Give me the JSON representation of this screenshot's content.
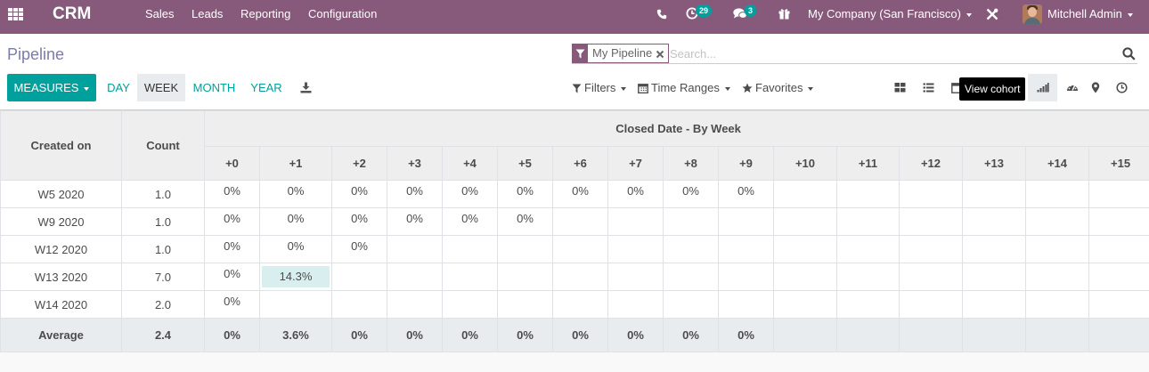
{
  "navbar": {
    "brand": "CRM",
    "menu": [
      "Sales",
      "Leads",
      "Reporting",
      "Configuration"
    ],
    "activity_count": "29",
    "message_count": "3",
    "company": "My Company (San Francisco)",
    "user": "Mitchell Admin",
    "color": "#875a7b"
  },
  "control_panel": {
    "breadcrumb": "Pipeline",
    "facet_label": "My Pipeline",
    "search_placeholder": "Search...",
    "measures_label": "MEASURES",
    "periods": [
      "DAY",
      "WEEK",
      "MONTH",
      "YEAR"
    ],
    "active_period": "WEEK",
    "filters_label": "Filters",
    "time_ranges_label": "Time Ranges",
    "favorites_label": "Favorites",
    "views": [
      "kanban-icon",
      "list-icon",
      "calendar-icon",
      "cohort-icon",
      "dashboard-icon",
      "map-icon",
      "activity-icon"
    ],
    "active_view": "cohort-icon",
    "tooltip": "View cohort",
    "accent_color": "#00a09d"
  },
  "cohort": {
    "header_created": "Created on",
    "header_count": "Count",
    "header_group": "Closed Date - By Week",
    "intervals": [
      "+0",
      "+1",
      "+2",
      "+3",
      "+4",
      "+5",
      "+6",
      "+7",
      "+8",
      "+9",
      "+10",
      "+11",
      "+12",
      "+13",
      "+14",
      "+15"
    ],
    "rows": [
      {
        "label": "W5 2020",
        "count": "1.0",
        "values": [
          "0%",
          "0%",
          "0%",
          "0%",
          "0%",
          "0%",
          "0%",
          "0%",
          "0%",
          "0%"
        ]
      },
      {
        "label": "W9 2020",
        "count": "1.0",
        "values": [
          "0%",
          "0%",
          "0%",
          "0%",
          "0%",
          "0%"
        ]
      },
      {
        "label": "W12 2020",
        "count": "1.0",
        "values": [
          "0%",
          "0%",
          "0%"
        ]
      },
      {
        "label": "W13 2020",
        "count": "7.0",
        "values": [
          "0%",
          "14.3%"
        ]
      },
      {
        "label": "W14 2020",
        "count": "2.0",
        "values": [
          "0%"
        ]
      }
    ],
    "highlight": {
      "row": 3,
      "col": 1
    },
    "footer": {
      "label": "Average",
      "count": "2.4",
      "values": [
        "0%",
        "3.6%",
        "0%",
        "0%",
        "0%",
        "0%",
        "0%",
        "0%",
        "0%",
        "0%"
      ]
    }
  }
}
